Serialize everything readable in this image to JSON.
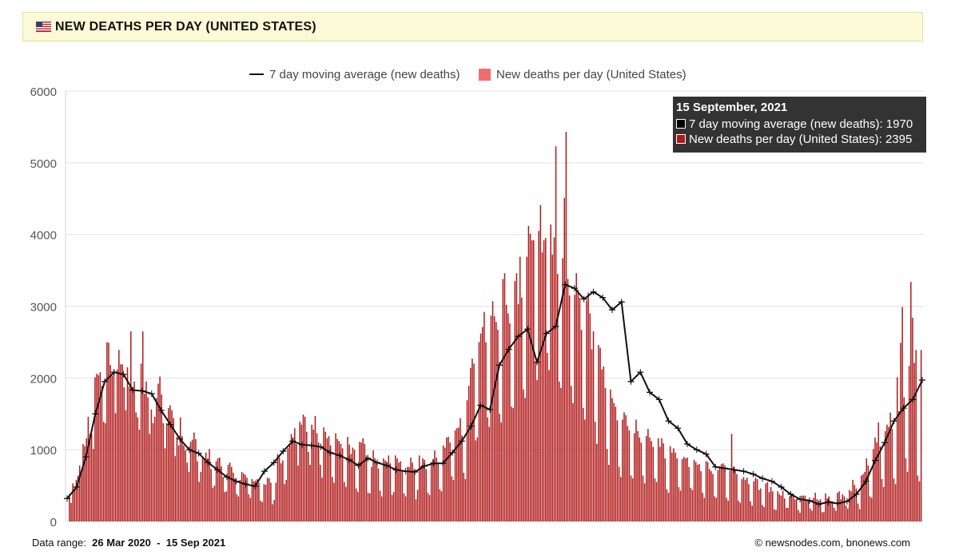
{
  "header": {
    "flag_icon": "us-flag-icon",
    "title": "NEW DEATHS PER DAY (UNITED STATES)"
  },
  "footer": {
    "range_label": "Data range:",
    "range_start": "26 Mar 2020",
    "range_sep": "-",
    "range_end": "15 Sep 2021",
    "copyright": "©  newsnodes.com, bnonews.com"
  },
  "tooltip": {
    "date": "15 September, 2021",
    "avg_label": "7 day moving average (new deaths): 1970",
    "daily_label": "New deaths per day (United States): 2395"
  },
  "colors": {
    "bar": "#b01818",
    "bar_legend": "#f26d6d",
    "line": "#111111",
    "grid": "#e3e3e3"
  },
  "chart_data": {
    "type": "bar",
    "title": "NEW DEATHS PER DAY (UNITED STATES)",
    "xlabel": "",
    "ylabel": "",
    "ylim": [
      0,
      6000
    ],
    "yticks": [
      0,
      1000,
      2000,
      3000,
      4000,
      5000,
      6000
    ],
    "x_range": [
      "26 Mar 2020",
      "15 Sep 2021"
    ],
    "days": 539,
    "legend": [
      "7 day moving average (new deaths)",
      "New deaths per day (United States)"
    ],
    "series": [
      {
        "name": "7 day moving average (new deaths)",
        "type": "line",
        "note": "approximate weekly values read from chart, one every 7 days",
        "values": [
          320,
          480,
          900,
          1500,
          1950,
          2080,
          2050,
          1830,
          1820,
          1780,
          1550,
          1350,
          1150,
          1000,
          950,
          820,
          720,
          620,
          560,
          520,
          490,
          700,
          820,
          980,
          1120,
          1070,
          1060,
          1040,
          960,
          920,
          860,
          780,
          880,
          820,
          780,
          720,
          700,
          690,
          770,
          810,
          810,
          960,
          1120,
          1330,
          1620,
          1560,
          2180,
          2400,
          2580,
          2680,
          2220,
          2620,
          2720,
          3300,
          3250,
          3100,
          3200,
          3120,
          2950,
          3060,
          1950,
          2080,
          1800,
          1700,
          1400,
          1300,
          1080,
          1000,
          940,
          760,
          740,
          720,
          700,
          660,
          600,
          560,
          480,
          380,
          310,
          290,
          240,
          270,
          250,
          280,
          380,
          560,
          850,
          1100,
          1400,
          1580,
          1700,
          1970
        ]
      },
      {
        "name": "New deaths per day (United States)",
        "type": "bar",
        "note": "daily values sampled approximately from chart",
        "values": [
          0,
          380,
          260,
          530,
          460,
          580,
          640,
          780,
          690,
          1080,
          1050,
          1160,
          1460,
          1220,
          1220,
          1010,
          2010,
          2060,
          2040,
          2080,
          1890,
          1390,
          1370,
          2500,
          2490,
          2180,
          2030,
          2110,
          1510,
          2120,
          2390,
          2190,
          2190,
          1870,
          1550,
          2150,
          1880,
          2650,
          1870,
          1950,
          1520,
          1450,
          1280,
          2200,
          2650,
          1780,
          1950,
          1730,
          1220,
          1560,
          1370,
          1460,
          1720,
          1920,
          2020,
          1770,
          1370,
          1020,
          1370,
          1580,
          1620,
          1550,
          1440,
          910,
          1180,
          1060,
          1450,
          1190,
          1060,
          990,
          820,
          690,
          1110,
          1140,
          1240,
          1150,
          840,
          550,
          690,
          890,
          870,
          960,
          880,
          1010,
          730,
          470,
          500,
          840,
          880,
          890,
          770,
          620,
          410,
          420,
          790,
          820,
          760,
          680,
          600,
          380,
          350,
          580,
          690,
          670,
          650,
          610,
          380,
          330,
          590,
          560,
          570,
          590,
          540,
          290,
          270,
          520,
          510,
          610,
          600,
          540,
          240,
          300,
          540,
          940,
          890,
          810,
          850,
          520,
          580,
          1020,
          1060,
          1220,
          1170,
          1300,
          1080,
          780,
          1390,
          1350,
          1490,
          1460,
          1250,
          970,
          790,
          1350,
          1280,
          1470,
          1230,
          1100,
          790,
          610,
          1310,
          1250,
          1160,
          1190,
          1060,
          620,
          540,
          1230,
          1150,
          1120,
          1080,
          1020,
          550,
          480,
          1180,
          1070,
          940,
          1030,
          1000,
          460,
          410,
          1110,
          1100,
          1160,
          1080,
          920,
          400,
          390,
          760,
          990,
          880,
          820,
          740,
          430,
          350,
          880,
          850,
          830,
          920,
          810,
          370,
          410,
          920,
          880,
          820,
          840,
          700,
          390,
          350,
          760,
          760,
          890,
          820,
          720,
          310,
          440,
          920,
          770,
          880,
          860,
          730,
          400,
          370,
          830,
          870,
          990,
          890,
          820,
          450,
          420,
          1060,
          1030,
          1170,
          1180,
          1100,
          630,
          580,
          1270,
          1300,
          1310,
          1440,
          1200,
          680,
          590,
          1690,
          1890,
          2140,
          2270,
          2200,
          1130,
          1170,
          2500,
          2620,
          2710,
          2920,
          2500,
          1450,
          1320,
          2870,
          3070,
          2860,
          2780,
          2670,
          1500,
          1380,
          3380,
          3460,
          3020,
          2900,
          2760,
          1600,
          1580,
          3350,
          3460,
          3030,
          3690,
          3120,
          1840,
          1720,
          3690,
          4120,
          4010,
          3920,
          3920,
          2210,
          1970,
          4050,
          4410,
          3750,
          3920,
          3950,
          2350,
          2110,
          4140,
          3720,
          3960,
          5230,
          3450,
          1950,
          1860,
          3670,
          4510,
          5430,
          3380,
          3150,
          1890,
          1650,
          3160,
          3460,
          3230,
          3120,
          2670,
          1580,
          1420,
          3080,
          3190,
          2900,
          2400,
          2650,
          1390,
          1080,
          2460,
          2420,
          2120,
          2160,
          1860,
          1010,
          790,
          1840,
          1720,
          1650,
          1600,
          1410,
          760,
          620,
          1420,
          1520,
          1480,
          1330,
          1270,
          640,
          600,
          1230,
          1420,
          1260,
          1170,
          1100,
          640,
          530,
          1190,
          1290,
          1170,
          1120,
          1040,
          600,
          550,
          1160,
          1040,
          1160,
          1090,
          880,
          450,
          400,
          1050,
          960,
          1020,
          960,
          880,
          480,
          430,
          870,
          900,
          880,
          890,
          760,
          470,
          440,
          860,
          830,
          790,
          800,
          700,
          400,
          330,
          840,
          830,
          730,
          700,
          660,
          350,
          330,
          720,
          770,
          800,
          810,
          720,
          330,
          290,
          710,
          1220,
          760,
          710,
          660,
          290,
          260,
          590,
          620,
          580,
          610,
          520,
          280,
          220,
          560,
          610,
          590,
          440,
          460,
          230,
          200,
          530,
          550,
          410,
          480,
          420,
          170,
          160,
          420,
          380,
          360,
          430,
          320,
          190,
          190,
          350,
          380,
          380,
          310,
          310,
          160,
          120,
          360,
          360,
          360,
          300,
          290,
          180,
          150,
          330,
          400,
          310,
          290,
          310,
          130,
          130,
          390,
          320,
          350,
          290,
          280,
          190,
          150,
          400,
          420,
          310,
          380,
          350,
          220,
          180,
          440,
          420,
          580,
          510,
          460,
          250,
          170,
          640,
          660,
          690,
          880,
          780,
          350,
          330,
          1010,
          1170,
          1100,
          1380,
          1050,
          590,
          480,
          1260,
          1350,
          1320,
          1520,
          1290,
          600,
          520,
          2010,
          1540,
          2490,
          2990,
          1730,
          880,
          690,
          2170,
          3340,
          2840,
          2210,
          2390,
          640,
          560,
          2390
        ]
      }
    ]
  }
}
